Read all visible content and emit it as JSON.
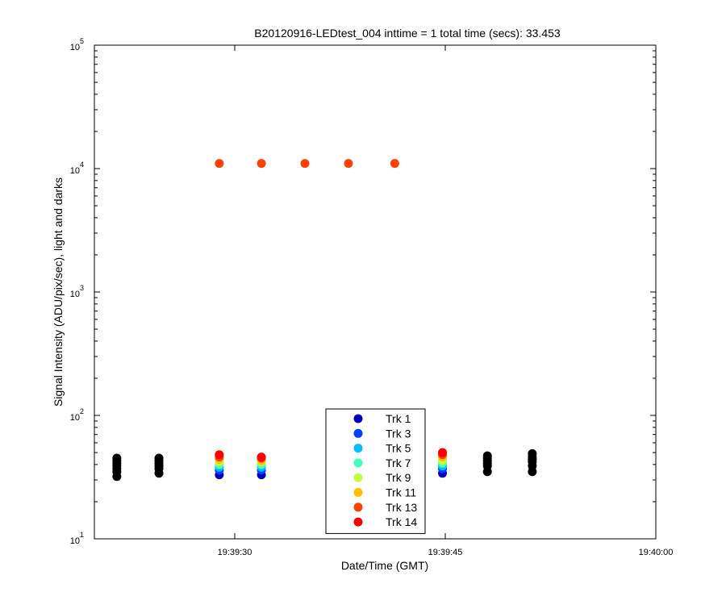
{
  "chart_data": {
    "type": "scatter",
    "title": "B20120916-LEDtest_004 inttime = 1 total time (secs): 33.453",
    "xlabel": "Date/Time (GMT)",
    "ylabel": "Signal Intensity (ADU/pix/sec), light and darks",
    "yscale": "log",
    "xlim": [
      "19:39:20",
      "19:40:00"
    ],
    "ylim": [
      10,
      100000
    ],
    "x_ticks": [
      "19:39:30",
      "19:39:45",
      "19:40:00"
    ],
    "y_ticks": [
      {
        "value": 10,
        "base": "10",
        "exp": "1"
      },
      {
        "value": 100,
        "base": "10",
        "exp": "2"
      },
      {
        "value": 1000,
        "base": "10",
        "exp": "3"
      },
      {
        "value": 10000,
        "base": "10",
        "exp": "4"
      },
      {
        "value": 100000,
        "base": "10",
        "exp": "5"
      }
    ],
    "grid": false,
    "legend_position": "bottom-center",
    "series": [
      {
        "name": "Trk 1",
        "color": "#0000bf",
        "points": [
          [
            "19:39:28.9",
            33
          ],
          [
            "19:39:31.9",
            33
          ],
          [
            "19:39:44.8",
            34
          ]
        ]
      },
      {
        "name": "Trk 3",
        "color": "#0040ff",
        "points": [
          [
            "19:39:28.9",
            36
          ],
          [
            "19:39:31.9",
            36
          ],
          [
            "19:39:44.8",
            37
          ]
        ]
      },
      {
        "name": "Trk 5",
        "color": "#00bfff",
        "points": [
          [
            "19:39:28.9",
            38
          ],
          [
            "19:39:31.9",
            38
          ],
          [
            "19:39:44.8",
            39
          ]
        ]
      },
      {
        "name": "Trk 7",
        "color": "#40ffbf",
        "points": [
          [
            "19:39:28.9",
            40
          ],
          [
            "19:39:31.9",
            40
          ],
          [
            "19:39:44.8",
            41
          ]
        ]
      },
      {
        "name": "Trk 9",
        "color": "#bfff40",
        "points": [
          [
            "19:39:28.9",
            42
          ],
          [
            "19:39:31.9",
            42
          ],
          [
            "19:39:44.8",
            43
          ]
        ]
      },
      {
        "name": "Trk 11",
        "color": "#ffbf00",
        "points": [
          [
            "19:39:28.9",
            44
          ],
          [
            "19:39:31.9",
            43
          ],
          [
            "19:39:44.8",
            46
          ]
        ]
      },
      {
        "name": "Trk 13",
        "color": "#ff4000",
        "points": [
          [
            "19:39:28.9",
            11000
          ],
          [
            "19:39:31.9",
            11000
          ],
          [
            "19:39:35.0",
            11000
          ],
          [
            "19:39:38.1",
            11000
          ],
          [
            "19:39:41.4",
            11000
          ],
          [
            "19:39:28.9",
            46
          ],
          [
            "19:39:31.9",
            45
          ],
          [
            "19:39:44.8",
            48
          ]
        ]
      },
      {
        "name": "Trk 14",
        "color": "#ff0000",
        "points": [
          [
            "19:39:28.9",
            48
          ],
          [
            "19:39:31.9",
            46
          ],
          [
            "19:39:44.8",
            50
          ]
        ]
      },
      {
        "name": "",
        "color": "#000000",
        "points": [
          [
            "19:39:21.6",
            32
          ],
          [
            "19:39:21.6",
            35
          ],
          [
            "19:39:21.6",
            37
          ],
          [
            "19:39:21.6",
            39
          ],
          [
            "19:39:21.6",
            41
          ],
          [
            "19:39:21.6",
            43
          ],
          [
            "19:39:21.6",
            45
          ],
          [
            "19:39:24.6",
            34
          ],
          [
            "19:39:24.6",
            37
          ],
          [
            "19:39:24.6",
            39
          ],
          [
            "19:39:24.6",
            41
          ],
          [
            "19:39:24.6",
            43
          ],
          [
            "19:39:24.6",
            45
          ],
          [
            "19:39:48.0",
            35
          ],
          [
            "19:39:48.0",
            39
          ],
          [
            "19:39:48.0",
            41
          ],
          [
            "19:39:48.0",
            43
          ],
          [
            "19:39:48.0",
            45
          ],
          [
            "19:39:48.0",
            47
          ],
          [
            "19:39:51.2",
            35
          ],
          [
            "19:39:51.2",
            39
          ],
          [
            "19:39:51.2",
            42
          ],
          [
            "19:39:51.2",
            44
          ],
          [
            "19:39:51.2",
            46
          ],
          [
            "19:39:51.2",
            49
          ]
        ]
      }
    ],
    "legend": [
      {
        "label": "Trk 1",
        "color": "#0000bf"
      },
      {
        "label": "Trk 3",
        "color": "#0040ff"
      },
      {
        "label": "Trk 5",
        "color": "#00bfff"
      },
      {
        "label": "Trk 7",
        "color": "#40ffbf"
      },
      {
        "label": "Trk 9",
        "color": "#bfff40"
      },
      {
        "label": "Trk 11",
        "color": "#ffbf00"
      },
      {
        "label": "Trk 13",
        "color": "#ff4000"
      },
      {
        "label": "Trk 14",
        "color": "#ff0000"
      }
    ]
  }
}
